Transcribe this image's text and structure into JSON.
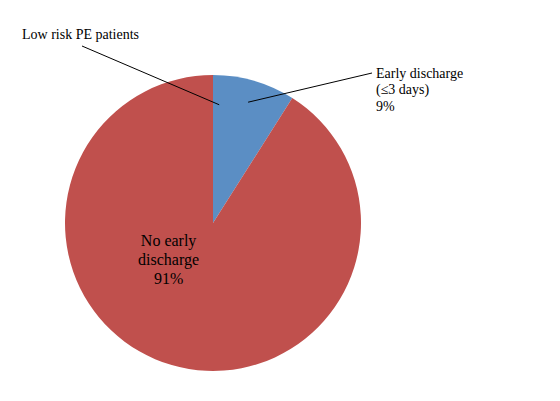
{
  "chart_data": {
    "type": "pie",
    "values": [
      9,
      91
    ],
    "colors": [
      "#5b8ec4",
      "#c0504d"
    ],
    "annotations": [
      "No early\ndischarge\n91%",
      "Early discharge\n(≤3 days)\n9%",
      "Low risk PE patients"
    ]
  }
}
